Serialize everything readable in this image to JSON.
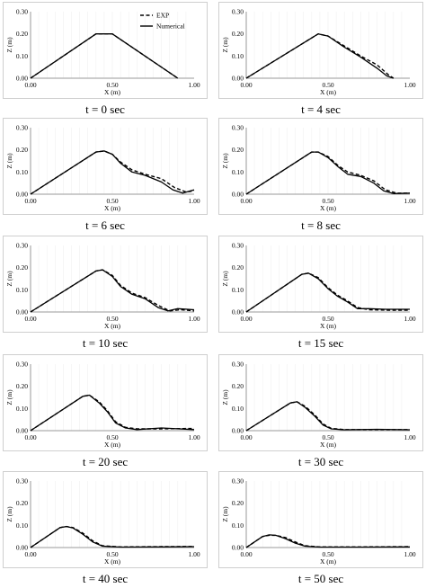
{
  "figure": {
    "x_label": "X (m)",
    "y_label": "Z (m)",
    "legend": {
      "exp": "EXP",
      "numerical": "Numerical"
    }
  },
  "chart_data": [
    {
      "type": "line",
      "caption": "t = 0 sec",
      "xlabel": "X (m)",
      "ylabel": "Z (m)",
      "xlim": [
        0,
        1
      ],
      "ylim": [
        0,
        0.3
      ],
      "xticks": [
        "0.00",
        "0.50",
        "1.00"
      ],
      "yticks": [
        "0.00",
        "0.10",
        "0.20",
        "0.30"
      ],
      "legend": "top-right",
      "series": [
        {
          "name": "EXP",
          "style": "dashed",
          "x": [
            0,
            0.4,
            0.5,
            0.9
          ],
          "y": [
            0,
            0.2,
            0.2,
            0
          ]
        },
        {
          "name": "Numerical",
          "style": "solid",
          "x": [
            0,
            0.4,
            0.5,
            0.9
          ],
          "y": [
            0,
            0.2,
            0.2,
            0
          ]
        }
      ]
    },
    {
      "type": "line",
      "caption": "t = 4 sec",
      "xlabel": "X (m)",
      "ylabel": "Z (m)",
      "xlim": [
        0,
        1
      ],
      "ylim": [
        0,
        0.3
      ],
      "xticks": [
        "0.00",
        "0.50",
        "1.00"
      ],
      "yticks": [
        "0.00",
        "0.10",
        "0.20",
        "0.30"
      ],
      "series": [
        {
          "name": "EXP",
          "style": "dashed",
          "x": [
            0,
            0.44,
            0.5,
            0.6,
            0.7,
            0.8,
            0.87,
            0.9
          ],
          "y": [
            0,
            0.2,
            0.19,
            0.145,
            0.1,
            0.06,
            0.015,
            0
          ]
        },
        {
          "name": "Numerical",
          "style": "solid",
          "x": [
            0,
            0.44,
            0.5,
            0.6,
            0.7,
            0.8,
            0.86,
            0.9
          ],
          "y": [
            0,
            0.2,
            0.19,
            0.14,
            0.095,
            0.045,
            0.01,
            0
          ]
        }
      ]
    },
    {
      "type": "line",
      "caption": "t = 6 sec",
      "xlabel": "X (m)",
      "ylabel": "Z (m)",
      "xlim": [
        0,
        1
      ],
      "ylim": [
        0,
        0.3
      ],
      "xticks": [
        "0.00",
        "0.50",
        "1.00"
      ],
      "yticks": [
        "0.00",
        "0.10",
        "0.20",
        "0.30"
      ],
      "series": [
        {
          "name": "EXP",
          "style": "dashed",
          "x": [
            0,
            0.4,
            0.45,
            0.5,
            0.55,
            0.62,
            0.7,
            0.8,
            0.88,
            0.95,
            1.0
          ],
          "y": [
            0,
            0.19,
            0.195,
            0.18,
            0.145,
            0.11,
            0.09,
            0.07,
            0.03,
            0.01,
            0.015
          ]
        },
        {
          "name": "Numerical",
          "style": "solid",
          "x": [
            0,
            0.4,
            0.45,
            0.5,
            0.55,
            0.62,
            0.7,
            0.8,
            0.87,
            0.93,
            1.0
          ],
          "y": [
            0,
            0.19,
            0.195,
            0.18,
            0.14,
            0.1,
            0.085,
            0.055,
            0.02,
            0.005,
            0.02
          ]
        }
      ]
    },
    {
      "type": "line",
      "caption": "t = 8 sec",
      "xlabel": "X (m)",
      "ylabel": "Z (m)",
      "xlim": [
        0,
        1
      ],
      "ylim": [
        0,
        0.3
      ],
      "xticks": [
        "0.00",
        "0.50",
        "1.00"
      ],
      "yticks": [
        "0.00",
        "0.10",
        "0.20",
        "0.30"
      ],
      "series": [
        {
          "name": "EXP",
          "style": "dashed",
          "x": [
            0,
            0.4,
            0.44,
            0.5,
            0.56,
            0.62,
            0.7,
            0.78,
            0.85,
            0.92,
            1.0
          ],
          "y": [
            0,
            0.19,
            0.19,
            0.17,
            0.13,
            0.1,
            0.085,
            0.06,
            0.02,
            0.005,
            0.005
          ]
        },
        {
          "name": "Numerical",
          "style": "solid",
          "x": [
            0,
            0.4,
            0.44,
            0.5,
            0.56,
            0.62,
            0.7,
            0.78,
            0.84,
            0.9,
            1.0
          ],
          "y": [
            0,
            0.19,
            0.19,
            0.165,
            0.125,
            0.09,
            0.08,
            0.05,
            0.015,
            0.003,
            0.005
          ]
        }
      ]
    },
    {
      "type": "line",
      "caption": "t = 10 sec",
      "xlabel": "X (m)",
      "ylabel": "Z (m)",
      "xlim": [
        0,
        1
      ],
      "ylim": [
        0,
        0.3
      ],
      "xticks": [
        "0.00",
        "0.50",
        "1.00"
      ],
      "yticks": [
        "0.00",
        "0.10",
        "0.20",
        "0.30"
      ],
      "series": [
        {
          "name": "EXP",
          "style": "dashed",
          "x": [
            0,
            0.4,
            0.44,
            0.5,
            0.55,
            0.62,
            0.7,
            0.78,
            0.85,
            0.92,
            1.0
          ],
          "y": [
            0,
            0.185,
            0.19,
            0.165,
            0.12,
            0.085,
            0.065,
            0.03,
            0.005,
            0.01,
            0.005
          ]
        },
        {
          "name": "Numerical",
          "style": "solid",
          "x": [
            0,
            0.4,
            0.44,
            0.5,
            0.55,
            0.62,
            0.7,
            0.78,
            0.84,
            0.9,
            1.0
          ],
          "y": [
            0,
            0.185,
            0.19,
            0.16,
            0.115,
            0.08,
            0.06,
            0.02,
            0.005,
            0.015,
            0.01
          ]
        }
      ]
    },
    {
      "type": "line",
      "caption": "t = 15 sec",
      "xlabel": "X (m)",
      "ylabel": "Z (m)",
      "xlim": [
        0,
        1
      ],
      "ylim": [
        0,
        0.3
      ],
      "xticks": [
        "0.00",
        "0.50",
        "1.00"
      ],
      "yticks": [
        "0.00",
        "0.10",
        "0.20",
        "0.30"
      ],
      "series": [
        {
          "name": "EXP",
          "style": "dashed",
          "x": [
            0,
            0.34,
            0.38,
            0.44,
            0.5,
            0.56,
            0.62,
            0.68,
            0.75,
            0.85,
            1.0
          ],
          "y": [
            0,
            0.17,
            0.175,
            0.155,
            0.11,
            0.075,
            0.05,
            0.02,
            0.01,
            0.008,
            0.008
          ]
        },
        {
          "name": "Numerical",
          "style": "solid",
          "x": [
            0,
            0.34,
            0.38,
            0.44,
            0.5,
            0.56,
            0.62,
            0.68,
            0.75,
            0.85,
            1.0
          ],
          "y": [
            0,
            0.17,
            0.175,
            0.15,
            0.105,
            0.07,
            0.045,
            0.015,
            0.015,
            0.012,
            0.012
          ]
        }
      ]
    },
    {
      "type": "line",
      "caption": "t = 20 sec",
      "xlabel": "X (m)",
      "ylabel": "Z (m)",
      "xlim": [
        0,
        1
      ],
      "ylim": [
        0,
        0.3
      ],
      "xticks": [
        "0.00",
        "0.50",
        "1.00"
      ],
      "yticks": [
        "0.00",
        "0.10",
        "0.20",
        "0.30"
      ],
      "series": [
        {
          "name": "EXP",
          "style": "dashed",
          "x": [
            0,
            0.32,
            0.36,
            0.42,
            0.47,
            0.52,
            0.58,
            0.65,
            0.8,
            1.0
          ],
          "y": [
            0,
            0.155,
            0.16,
            0.13,
            0.09,
            0.04,
            0.015,
            0.008,
            0.008,
            0.01
          ]
        },
        {
          "name": "Numerical",
          "style": "solid",
          "x": [
            0,
            0.32,
            0.36,
            0.42,
            0.47,
            0.52,
            0.58,
            0.65,
            0.8,
            1.0
          ],
          "y": [
            0,
            0.155,
            0.16,
            0.125,
            0.085,
            0.035,
            0.012,
            0.005,
            0.012,
            0.005
          ]
        }
      ]
    },
    {
      "type": "line",
      "caption": "t = 30 sec",
      "xlabel": "X (m)",
      "ylabel": "Z (m)",
      "xlim": [
        0,
        1
      ],
      "ylim": [
        0,
        0.3
      ],
      "xticks": [
        "0.00",
        "0.50",
        "1.00"
      ],
      "yticks": [
        "0.00",
        "0.10",
        "0.20",
        "0.30"
      ],
      "series": [
        {
          "name": "EXP",
          "style": "dashed",
          "x": [
            0,
            0.27,
            0.31,
            0.36,
            0.42,
            0.47,
            0.52,
            0.6,
            0.8,
            1.0
          ],
          "y": [
            0,
            0.125,
            0.13,
            0.11,
            0.07,
            0.03,
            0.01,
            0.005,
            0.005,
            0.005
          ]
        },
        {
          "name": "Numerical",
          "style": "solid",
          "x": [
            0,
            0.27,
            0.31,
            0.36,
            0.42,
            0.47,
            0.52,
            0.6,
            0.8,
            1.0
          ],
          "y": [
            0,
            0.125,
            0.13,
            0.105,
            0.065,
            0.025,
            0.008,
            0.004,
            0.006,
            0.004
          ]
        }
      ]
    },
    {
      "type": "line",
      "caption": "t = 40 sec",
      "xlabel": "X (m)",
      "ylabel": "Z (m)",
      "xlim": [
        0,
        1
      ],
      "ylim": [
        0,
        0.3
      ],
      "xticks": [
        "0.00",
        "0.50",
        "1.00"
      ],
      "yticks": [
        "0.00",
        "0.10",
        "0.20",
        "0.30"
      ],
      "series": [
        {
          "name": "EXP",
          "style": "dashed",
          "x": [
            0,
            0.18,
            0.22,
            0.26,
            0.32,
            0.38,
            0.44,
            0.55,
            0.8,
            1.0
          ],
          "y": [
            0,
            0.09,
            0.095,
            0.09,
            0.065,
            0.03,
            0.008,
            0.003,
            0.004,
            0.005
          ]
        },
        {
          "name": "Numerical",
          "style": "solid",
          "x": [
            0,
            0.18,
            0.22,
            0.26,
            0.32,
            0.38,
            0.44,
            0.55,
            0.8,
            1.0
          ],
          "y": [
            0,
            0.09,
            0.095,
            0.088,
            0.06,
            0.025,
            0.006,
            0.002,
            0.003,
            0.004
          ]
        }
      ]
    },
    {
      "type": "line",
      "caption": "t = 50 sec",
      "xlabel": "X (m)",
      "ylabel": "Z (m)",
      "xlim": [
        0,
        1
      ],
      "ylim": [
        0,
        0.3
      ],
      "xticks": [
        "0.00",
        "0.50",
        "1.00"
      ],
      "yticks": [
        "0.00",
        "0.10",
        "0.20",
        "0.30"
      ],
      "series": [
        {
          "name": "EXP",
          "style": "dashed",
          "x": [
            0,
            0.1,
            0.14,
            0.18,
            0.24,
            0.3,
            0.36,
            0.45,
            0.7,
            1.0
          ],
          "y": [
            0,
            0.05,
            0.055,
            0.055,
            0.045,
            0.025,
            0.008,
            0.003,
            0.003,
            0.004
          ]
        },
        {
          "name": "Numerical",
          "style": "solid",
          "x": [
            0,
            0.1,
            0.14,
            0.18,
            0.24,
            0.3,
            0.36,
            0.45,
            0.7,
            1.0
          ],
          "y": [
            0,
            0.05,
            0.057,
            0.055,
            0.04,
            0.02,
            0.006,
            0.002,
            0.002,
            0.003
          ]
        }
      ]
    }
  ]
}
